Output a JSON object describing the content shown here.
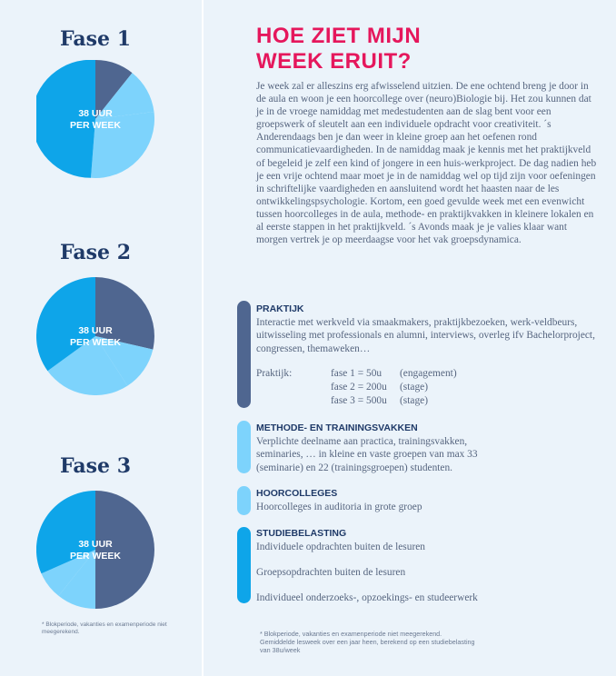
{
  "colors": {
    "dark": "#4f6690",
    "mid": "#0ea5e9",
    "light": "#7dd3fc",
    "pale": "#bae6fd",
    "accent": "#e5175c"
  },
  "phases": [
    {
      "title": "Fase 1",
      "line1": "38 UUR",
      "line2": "PER WEEK"
    },
    {
      "title": "Fase 2",
      "line1": "38 UUR",
      "line2": "PER WEEK"
    },
    {
      "title": "Fase 3",
      "line1": "38 UUR",
      "line2": "PER WEEK"
    }
  ],
  "left_note": "* Blokperiode, vakanties en examenperiode niet meegerekend.",
  "heading": {
    "line1": "HOE ZIET MIJN",
    "line2": "WEEK ERUIT?"
  },
  "intro": "Je week zal er alleszins erg afwisselend uitzien. De ene ochtend breng je door in de aula en woon je een hoorcollege over (neuro)Biologie bij. Het zou kunnen dat je in de vroege namiddag met medestudenten aan de slag bent voor een groepswerk of sleutelt aan een individuele opdracht voor creativiteit. ´s Anderendaags ben je dan weer in kleine groep aan het oefenen rond communicatievaardigheden. In de namiddag maak je kennis met het praktijkveld of begeleid je zelf een kind of jongere in een huis-werkproject. De dag nadien heb je een vrije ochtend maar moet je in de namiddag wel op tijd zijn voor oefeningen in schriftelijke vaardigheden en aansluitend wordt het haasten naar de les ontwikkelingspsychologie. Kortom, een goed gevulde week met een evenwicht tussen hoorcolleges in de aula, methode- en praktijkvakken in kleinere lokalen en al eerste stappen in het praktijkveld. ´s Avonds maak je je valies klaar want morgen vertrek je op meerdaagse voor het vak groepsdynamica.",
  "praktijk": {
    "title": "PRAKTIJK",
    "text": "Interactie met werkveld via smaakmakers, praktijkbezoeken, werk-veldbeurs, uitwisseling met professionals en alumni, interviews, overleg ifv Bachelorproject, congressen, themaweken…",
    "label": "Praktijk:",
    "rows": [
      {
        "fase": "fase 1 = 50u",
        "note": "(engagement)"
      },
      {
        "fase": "fase 2 = 200u",
        "note": "(stage)"
      },
      {
        "fase": "fase 3 = 500u",
        "note": "(stage)"
      }
    ]
  },
  "methode": {
    "title": "METHODE- EN TRAININGSVAKKEN",
    "text": "Verplichte deelname aan practica, trainingsvakken, seminaries, … in kleine en vaste groepen van max 33 (seminarie) en 22 (trainingsgroepen) studenten."
  },
  "hoorcolleges": {
    "title": "HOORCOLLEGES",
    "text": "Hoorcolleges in auditoria in grote groep"
  },
  "studiebelasting": {
    "title": "STUDIEBELASTING",
    "items": [
      "Individuele opdrachten buiten de lesuren",
      "Groepsopdrachten buiten de lesuren",
      "Individueel onderzoeks-, opzoekings- en studeerwerk"
    ]
  },
  "footnote": "* Blokperiode, vakanties en examenperiode niet meegerekend. Gemiddelde lesweek over een jaar heen, berekend op een studiebelasting van 38u/week"
}
